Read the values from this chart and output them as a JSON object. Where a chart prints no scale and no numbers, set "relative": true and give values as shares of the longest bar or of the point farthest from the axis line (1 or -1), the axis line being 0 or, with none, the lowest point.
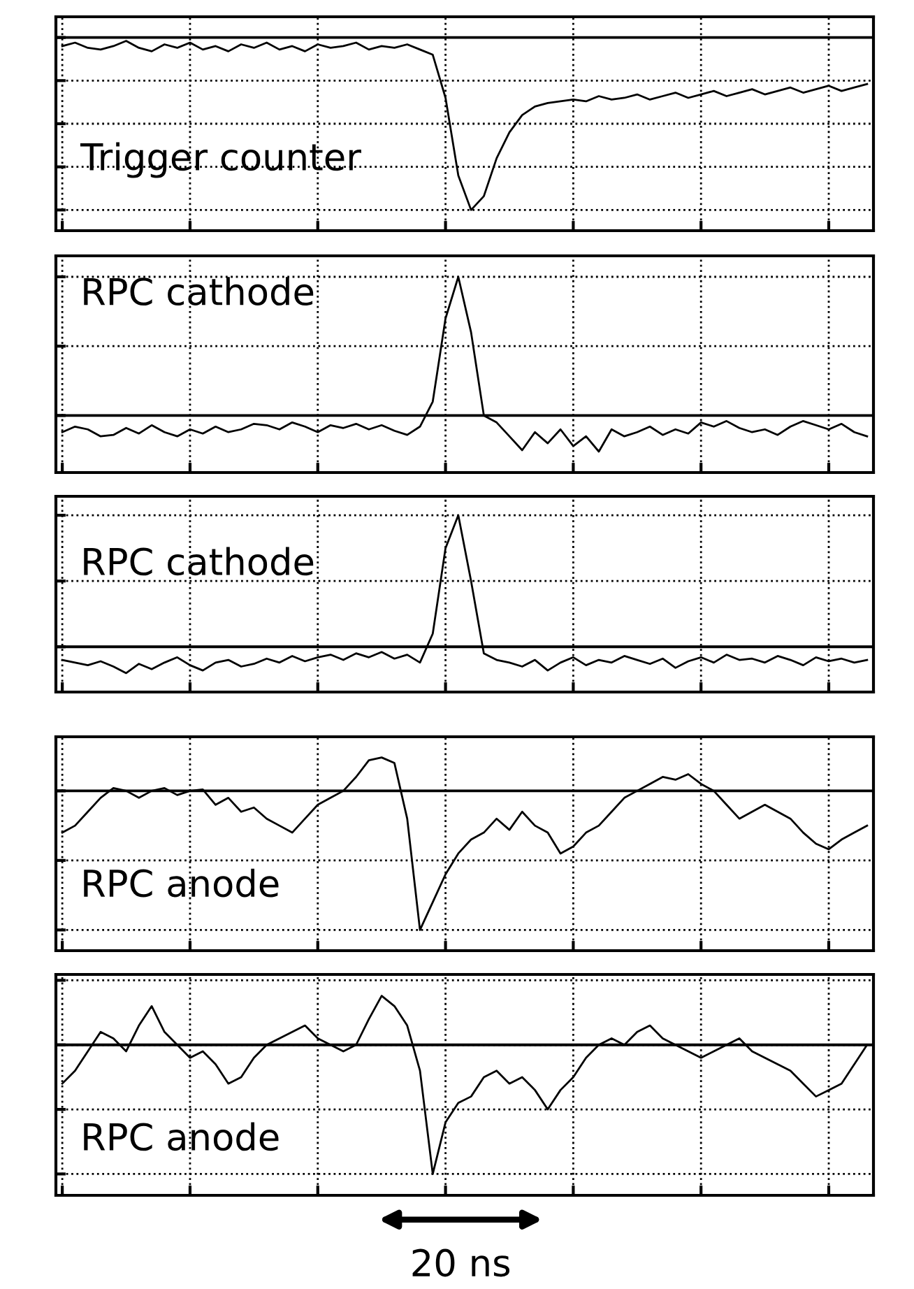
{
  "chart_data": [
    {
      "type": "line",
      "relative": true,
      "tick_labels": false,
      "grid": true,
      "color": "#000000",
      "categories": [
        null,
        null,
        null,
        null,
        null,
        null,
        null,
        null,
        null,
        null,
        null,
        null,
        null,
        null,
        null,
        null,
        null,
        null,
        null,
        null,
        null,
        null,
        null,
        null,
        null,
        null,
        null,
        null,
        null,
        null,
        null,
        null,
        null,
        null,
        null,
        null,
        null,
        null,
        null,
        null,
        null,
        null,
        null,
        null,
        null,
        null,
        null,
        null,
        null,
        null,
        null,
        null,
        null,
        null,
        null,
        null,
        null,
        null,
        null,
        null,
        null,
        null,
        null,
        null
      ],
      "annotations": [
        "Trigger counter"
      ],
      "values": [
        -0.05,
        -0.03,
        -0.06,
        -0.07,
        -0.05,
        -0.02,
        -0.06,
        -0.08,
        -0.04,
        -0.06,
        -0.03,
        -0.07,
        -0.05,
        -0.08,
        -0.04,
        -0.06,
        -0.03,
        -0.07,
        -0.05,
        -0.08,
        -0.04,
        -0.06,
        -0.05,
        -0.03,
        -0.07,
        -0.05,
        -0.06,
        -0.04,
        -0.07,
        -0.1,
        -0.35,
        -0.8,
        -1,
        -0.92,
        -0.7,
        -0.55,
        -0.45,
        -0.4,
        -0.38,
        -0.37,
        -0.36,
        -0.37,
        -0.34,
        -0.36,
        -0.35,
        -0.33,
        -0.36,
        -0.34,
        -0.32,
        -0.35,
        -0.33,
        -0.31,
        -0.34,
        -0.32,
        -0.3,
        -0.33,
        -0.31,
        -0.29,
        -0.32,
        -0.3,
        -0.28,
        -0.31,
        -0.29,
        -0.27
      ]
    },
    {
      "type": "line",
      "relative": true,
      "tick_labels": false,
      "grid": true,
      "color": "#000000",
      "categories": [
        null,
        null,
        null,
        null,
        null,
        null,
        null,
        null,
        null,
        null,
        null,
        null,
        null,
        null,
        null,
        null,
        null,
        null,
        null,
        null,
        null,
        null,
        null,
        null,
        null,
        null,
        null,
        null,
        null,
        null,
        null,
        null,
        null,
        null,
        null,
        null,
        null,
        null,
        null,
        null,
        null,
        null,
        null,
        null,
        null,
        null,
        null,
        null,
        null,
        null,
        null,
        null,
        null,
        null,
        null,
        null,
        null,
        null,
        null,
        null,
        null,
        null,
        null,
        null
      ],
      "annotations": [
        "RPC cathode"
      ],
      "values": [
        -0.12,
        -0.08,
        -0.1,
        -0.15,
        -0.14,
        -0.09,
        -0.13,
        -0.07,
        -0.12,
        -0.15,
        -0.1,
        -0.13,
        -0.08,
        -0.12,
        -0.1,
        -0.06,
        -0.07,
        -0.1,
        -0.05,
        -0.08,
        -0.12,
        -0.07,
        -0.09,
        -0.06,
        -0.1,
        -0.07,
        -0.11,
        -0.14,
        -0.08,
        0.1,
        0.7,
        1,
        0.6,
        0.0,
        -0.05,
        -0.15,
        -0.25,
        -0.12,
        -0.2,
        -0.1,
        -0.22,
        -0.15,
        -0.26,
        -0.1,
        -0.15,
        -0.12,
        -0.08,
        -0.14,
        -0.1,
        -0.13,
        -0.05,
        -0.08,
        -0.04,
        -0.09,
        -0.12,
        -0.1,
        -0.14,
        -0.08,
        -0.04,
        -0.07,
        -0.1,
        -0.06,
        -0.12,
        -0.15
      ]
    },
    {
      "type": "line",
      "relative": true,
      "tick_labels": false,
      "grid": true,
      "color": "#000000",
      "categories": [
        null,
        null,
        null,
        null,
        null,
        null,
        null,
        null,
        null,
        null,
        null,
        null,
        null,
        null,
        null,
        null,
        null,
        null,
        null,
        null,
        null,
        null,
        null,
        null,
        null,
        null,
        null,
        null,
        null,
        null,
        null,
        null,
        null,
        null,
        null,
        null,
        null,
        null,
        null,
        null,
        null,
        null,
        null,
        null,
        null,
        null,
        null,
        null,
        null,
        null,
        null,
        null,
        null,
        null,
        null,
        null,
        null,
        null,
        null,
        null,
        null,
        null,
        null,
        null
      ],
      "annotations": [
        "RPC cathode"
      ],
      "values": [
        -0.1,
        -0.12,
        -0.14,
        -0.11,
        -0.15,
        -0.2,
        -0.13,
        -0.17,
        -0.12,
        -0.08,
        -0.14,
        -0.18,
        -0.12,
        -0.1,
        -0.15,
        -0.13,
        -0.09,
        -0.12,
        -0.07,
        -0.11,
        -0.08,
        -0.06,
        -0.1,
        -0.05,
        -0.08,
        -0.04,
        -0.09,
        -0.06,
        -0.12,
        0.1,
        0.75,
        1,
        0.5,
        -0.05,
        -0.1,
        -0.12,
        -0.15,
        -0.1,
        -0.18,
        -0.12,
        -0.08,
        -0.14,
        -0.1,
        -0.12,
        -0.07,
        -0.1,
        -0.13,
        -0.09,
        -0.16,
        -0.11,
        -0.08,
        -0.12,
        -0.06,
        -0.1,
        -0.09,
        -0.12,
        -0.07,
        -0.1,
        -0.14,
        -0.08,
        -0.11,
        -0.09,
        -0.12,
        -0.1
      ]
    },
    {
      "type": "line",
      "relative": true,
      "tick_labels": false,
      "grid": true,
      "color": "#000000",
      "categories": [
        null,
        null,
        null,
        null,
        null,
        null,
        null,
        null,
        null,
        null,
        null,
        null,
        null,
        null,
        null,
        null,
        null,
        null,
        null,
        null,
        null,
        null,
        null,
        null,
        null,
        null,
        null,
        null,
        null,
        null,
        null,
        null,
        null,
        null,
        null,
        null,
        null,
        null,
        null,
        null,
        null,
        null,
        null,
        null,
        null,
        null,
        null,
        null,
        null,
        null,
        null,
        null,
        null,
        null,
        null,
        null,
        null,
        null,
        null,
        null,
        null,
        null,
        null,
        null
      ],
      "annotations": [
        "RPC anode"
      ],
      "values": [
        -0.3,
        -0.25,
        -0.15,
        -0.05,
        0.02,
        0.0,
        -0.05,
        0.0,
        0.02,
        -0.03,
        0.0,
        0.01,
        -0.1,
        -0.05,
        -0.15,
        -0.12,
        -0.2,
        -0.25,
        -0.3,
        -0.2,
        -0.1,
        -0.05,
        0.0,
        0.1,
        0.22,
        0.24,
        0.2,
        -0.2,
        -1,
        -0.8,
        -0.6,
        -0.45,
        -0.35,
        -0.3,
        -0.2,
        -0.28,
        -0.15,
        -0.25,
        -0.3,
        -0.45,
        -0.4,
        -0.3,
        -0.25,
        -0.15,
        -0.05,
        0.0,
        0.05,
        0.1,
        0.08,
        0.12,
        0.05,
        0.0,
        -0.1,
        -0.2,
        -0.15,
        -0.1,
        -0.15,
        -0.2,
        -0.3,
        -0.38,
        -0.42,
        -0.35,
        -0.3,
        -0.25
      ]
    },
    {
      "type": "line",
      "relative": true,
      "tick_labels": false,
      "grid": true,
      "color": "#000000",
      "categories": [
        null,
        null,
        null,
        null,
        null,
        null,
        null,
        null,
        null,
        null,
        null,
        null,
        null,
        null,
        null,
        null,
        null,
        null,
        null,
        null,
        null,
        null,
        null,
        null,
        null,
        null,
        null,
        null,
        null,
        null,
        null,
        null,
        null,
        null,
        null,
        null,
        null,
        null,
        null,
        null,
        null,
        null,
        null,
        null,
        null,
        null,
        null,
        null,
        null,
        null,
        null,
        null,
        null,
        null,
        null,
        null,
        null,
        null,
        null,
        null,
        null,
        null,
        null,
        null
      ],
      "annotations": [
        "RPC anode",
        "20 ns"
      ],
      "values": [
        -0.3,
        -0.2,
        -0.05,
        0.1,
        0.05,
        -0.05,
        0.15,
        0.3,
        0.1,
        0.0,
        -0.1,
        -0.05,
        -0.15,
        -0.3,
        -0.25,
        -0.1,
        0.0,
        0.05,
        0.1,
        0.15,
        0.05,
        0.0,
        -0.05,
        0.0,
        0.2,
        0.38,
        0.3,
        0.15,
        -0.2,
        -1,
        -0.6,
        -0.45,
        -0.4,
        -0.25,
        -0.2,
        -0.3,
        -0.25,
        -0.35,
        -0.5,
        -0.35,
        -0.25,
        -0.1,
        0.0,
        0.05,
        0.0,
        0.1,
        0.15,
        0.05,
        0.0,
        -0.05,
        -0.1,
        -0.05,
        0.0,
        0.05,
        -0.05,
        -0.1,
        -0.15,
        -0.2,
        -0.3,
        -0.4,
        -0.35,
        -0.3,
        -0.15,
        0.0
      ]
    }
  ]
}
